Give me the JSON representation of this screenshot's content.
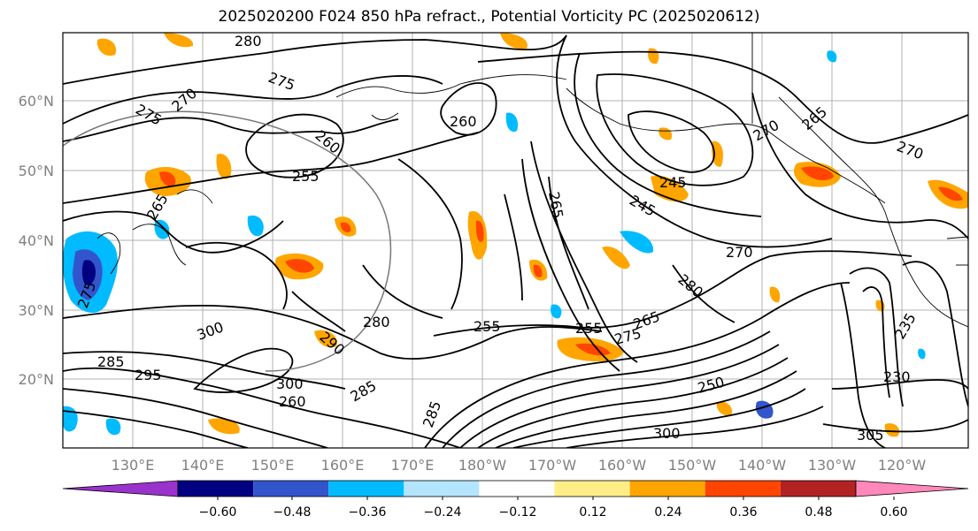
{
  "title": "2025020200 F024 850 hPa refract., Potential Vorticity PC (2025020612)",
  "map": {
    "lon_labels": [
      "130°E",
      "140°E",
      "150°E",
      "160°E",
      "170°E",
      "180°W",
      "170°W",
      "160°W",
      "150°W",
      "140°W",
      "130°W",
      "120°W"
    ],
    "lat_labels": [
      "60°N",
      "50°N",
      "40°N",
      "30°N",
      "20°N"
    ],
    "grid": true,
    "tick_label_color": "#808080"
  },
  "contour_labels": [
    "280",
    "275",
    "275",
    "270",
    "260",
    "260",
    "255",
    "265",
    "245",
    "245",
    "270",
    "270",
    "265",
    "265",
    "270",
    "280",
    "265",
    "275",
    "280",
    "290",
    "300",
    "300",
    "295",
    "285",
    "285",
    "260",
    "255",
    "250",
    "230",
    "235",
    "305",
    "300",
    "285",
    "255",
    "275"
  ],
  "colorbar": {
    "ticks": [
      "−0.60",
      "−0.48",
      "−0.36",
      "−0.24",
      "−0.12",
      "0.12",
      "0.24",
      "0.36",
      "0.48",
      "0.60"
    ],
    "colors": [
      "#9933cc",
      "#000080",
      "#3355cc",
      "#00bbff",
      "#b3e5ff",
      "#ffffff",
      "#ffee88",
      "#ffa500",
      "#ff4500",
      "#b22222",
      "#ff88bb"
    ]
  }
}
